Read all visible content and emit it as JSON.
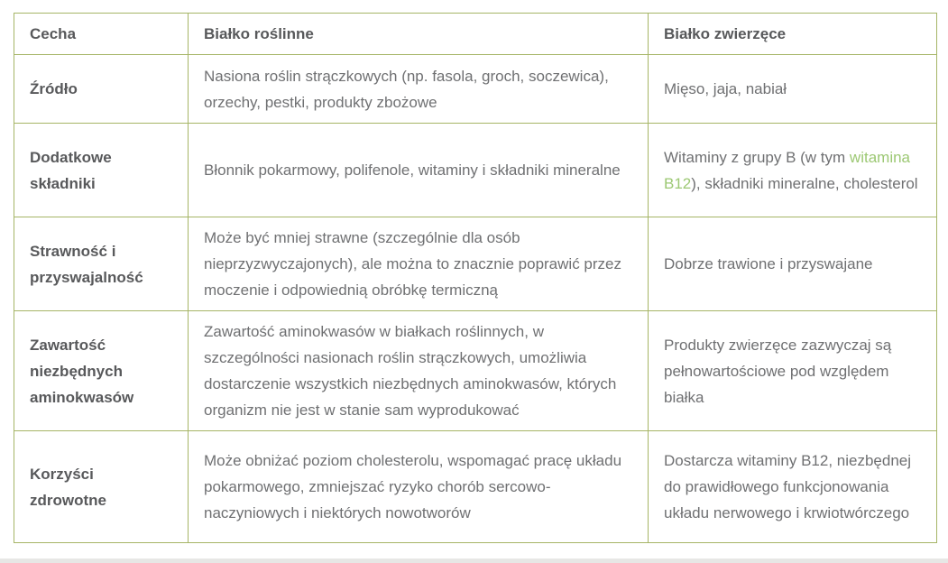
{
  "colors": {
    "table_border": "#a6b566",
    "header_text": "#58595b",
    "body_text": "#6f7072",
    "link_green": "#9cc873",
    "page_bg": "#ffffff",
    "bottom_strip": "#e7e7e5"
  },
  "table": {
    "headers": [
      "Cecha",
      "Białko roślinne",
      "Białko zwierzęce"
    ],
    "rows": [
      {
        "feature": "Źródło",
        "plant": "Nasiona roślin strączkowych (np. fasola, groch, soczewica), orzechy, pestki, produkty zbożowe",
        "animal": "Mięso, jaja, nabiał"
      },
      {
        "feature": "Dodatkowe składniki",
        "plant": "Błonnik pokarmowy, polifenole, witaminy i składniki mineralne",
        "animal_prefix": "Witaminy z grupy B (w tym ",
        "animal_link": "witamina B12",
        "animal_suffix": "), składniki mineralne, cholesterol"
      },
      {
        "feature": "Strawność i przyswajalność",
        "plant": "Może być mniej strawne (szczególnie dla osób nieprzyzwyczajonych), ale można to znacznie poprawić przez moczenie i odpowiednią obróbkę termiczną",
        "animal": "Dobrze trawione i przyswajane"
      },
      {
        "feature": "Zawartość niezbędnych aminokwasów",
        "plant": "Zawartość aminokwasów w białkach roślinnych, w szczególności nasionach roślin strączkowych, umożliwia dostarczenie wszystkich niezbędnych aminokwasów, których organizm nie jest w stanie sam wyprodukować",
        "animal": "Produkty zwierzęce zazwyczaj są pełnowartościowe pod względem białka"
      },
      {
        "feature": "Korzyści zdrowotne",
        "plant": "Może obniżać poziom cholesterolu, wspomagać pracę układu pokarmowego, zmniejszać ryzyko chorób sercowo-naczyniowych i niektórych nowotworów",
        "animal": "Dostarcza witaminy B12, niezbędnej do prawidłowego funkcjonowania układu nerwowego i krwiotwórczego"
      }
    ]
  }
}
